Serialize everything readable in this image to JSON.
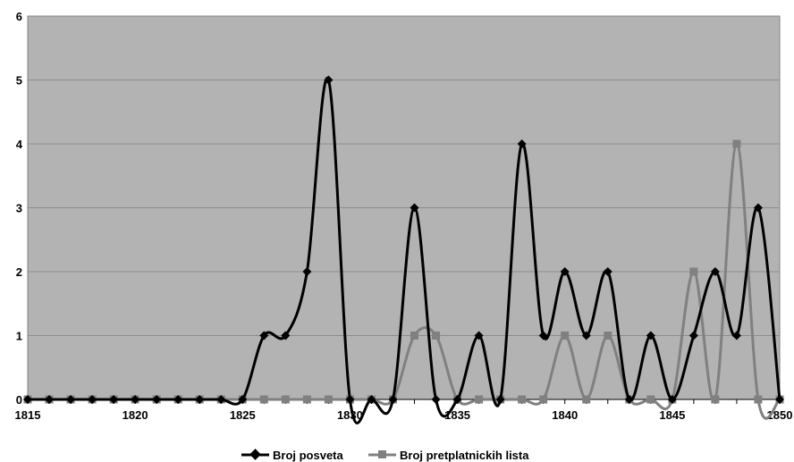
{
  "chart_data": {
    "type": "line",
    "smoothed": true,
    "x": [
      1815,
      1816,
      1817,
      1818,
      1819,
      1820,
      1821,
      1822,
      1823,
      1824,
      1825,
      1826,
      1827,
      1828,
      1829,
      1830,
      1831,
      1832,
      1833,
      1834,
      1835,
      1836,
      1837,
      1838,
      1839,
      1840,
      1841,
      1842,
      1843,
      1844,
      1845,
      1846,
      1847,
      1848,
      1849,
      1850
    ],
    "series": [
      {
        "name": "Broj posveta",
        "color": "#000000",
        "marker": "diamond",
        "values": [
          0,
          0,
          0,
          0,
          0,
          0,
          0,
          0,
          0,
          0,
          0,
          1,
          1,
          2,
          5,
          0,
          0,
          0,
          3,
          0,
          0,
          1,
          0,
          4,
          1,
          2,
          1,
          2,
          0,
          1,
          0,
          1,
          2,
          1,
          3,
          0
        ]
      },
      {
        "name": "Broj pretplatnickih lista",
        "color": "#808080",
        "marker": "square",
        "values": [
          0,
          0,
          0,
          0,
          0,
          0,
          0,
          0,
          0,
          0,
          0,
          0,
          0,
          0,
          0,
          0,
          0,
          0,
          1,
          1,
          0,
          0,
          0,
          0,
          0,
          1,
          0,
          1,
          0,
          0,
          0,
          2,
          0,
          4,
          0,
          0
        ]
      }
    ],
    "xlim": [
      1815,
      1850
    ],
    "ylim": [
      0,
      6
    ],
    "x_ticks": [
      1815,
      1820,
      1825,
      1830,
      1835,
      1840,
      1845,
      1850
    ],
    "y_ticks": [
      0,
      1,
      2,
      3,
      4,
      5,
      6
    ],
    "grid": "horizontal",
    "plot_background": "#b3b3b3",
    "legend_position": "bottom"
  }
}
